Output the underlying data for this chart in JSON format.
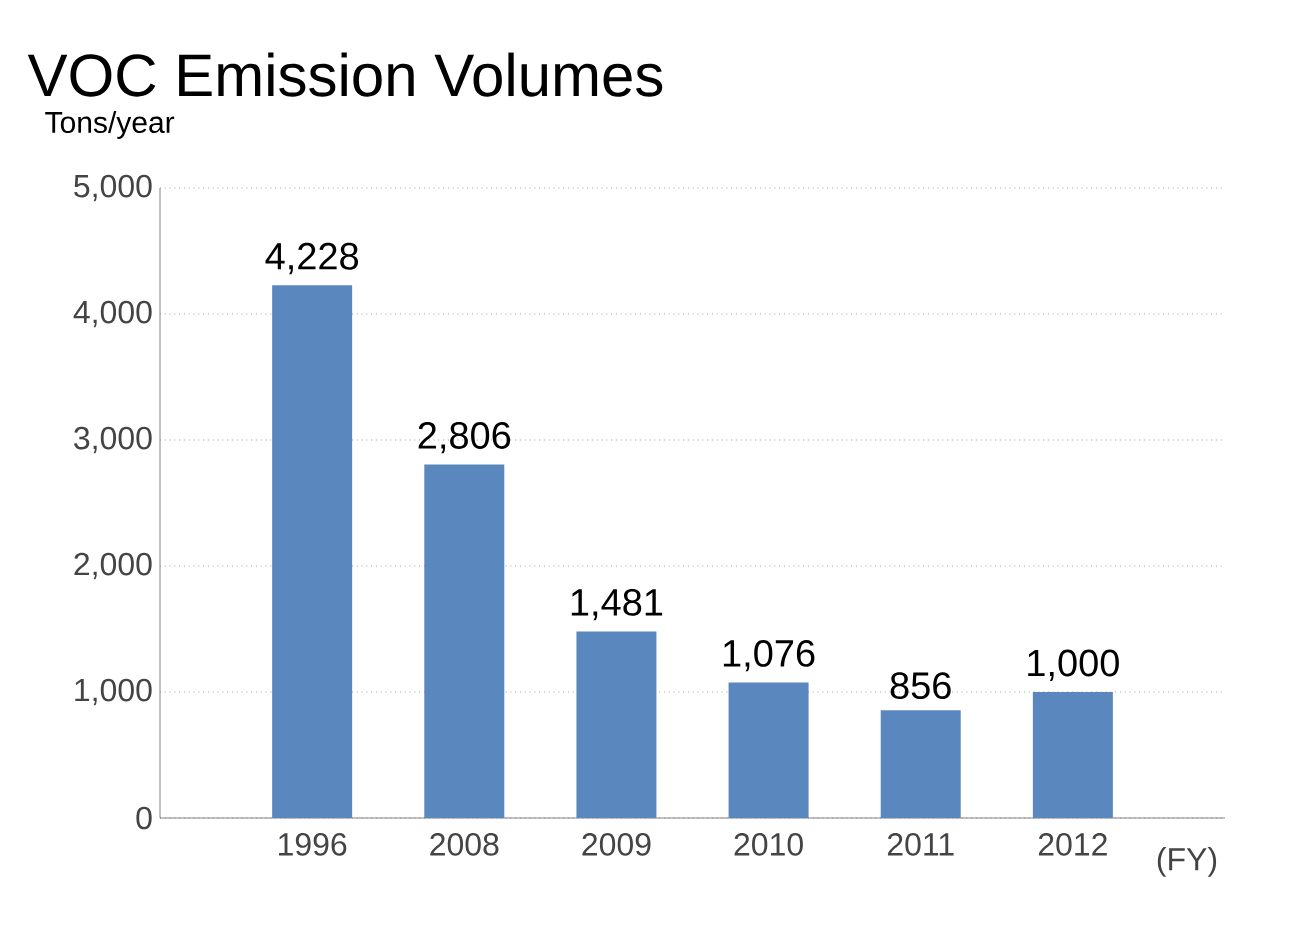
{
  "chart_data": {
    "type": "bar",
    "title": "VOC Emission Volumes",
    "ylabel": "Tons/year",
    "xlabel": "(FY)",
    "categories": [
      "1996",
      "2008",
      "2009",
      "2010",
      "2011",
      "2012"
    ],
    "values": [
      4228,
      2806,
      1481,
      1076,
      856,
      1000
    ],
    "value_labels": [
      "4,228",
      "2,806",
      "1,481",
      "1,076",
      "856",
      "1,000"
    ],
    "color": "#5b87bf",
    "ylim": [
      0,
      5000
    ],
    "yticks": [
      {
        "value": 0,
        "label": "0"
      },
      {
        "value": 1000,
        "label": "1,000"
      },
      {
        "value": 2000,
        "label": "2,000"
      },
      {
        "value": 3000,
        "label": "3,000"
      },
      {
        "value": 4000,
        "label": "4,000"
      },
      {
        "value": 5000,
        "label": "5,000"
      }
    ],
    "grid": "y"
  }
}
